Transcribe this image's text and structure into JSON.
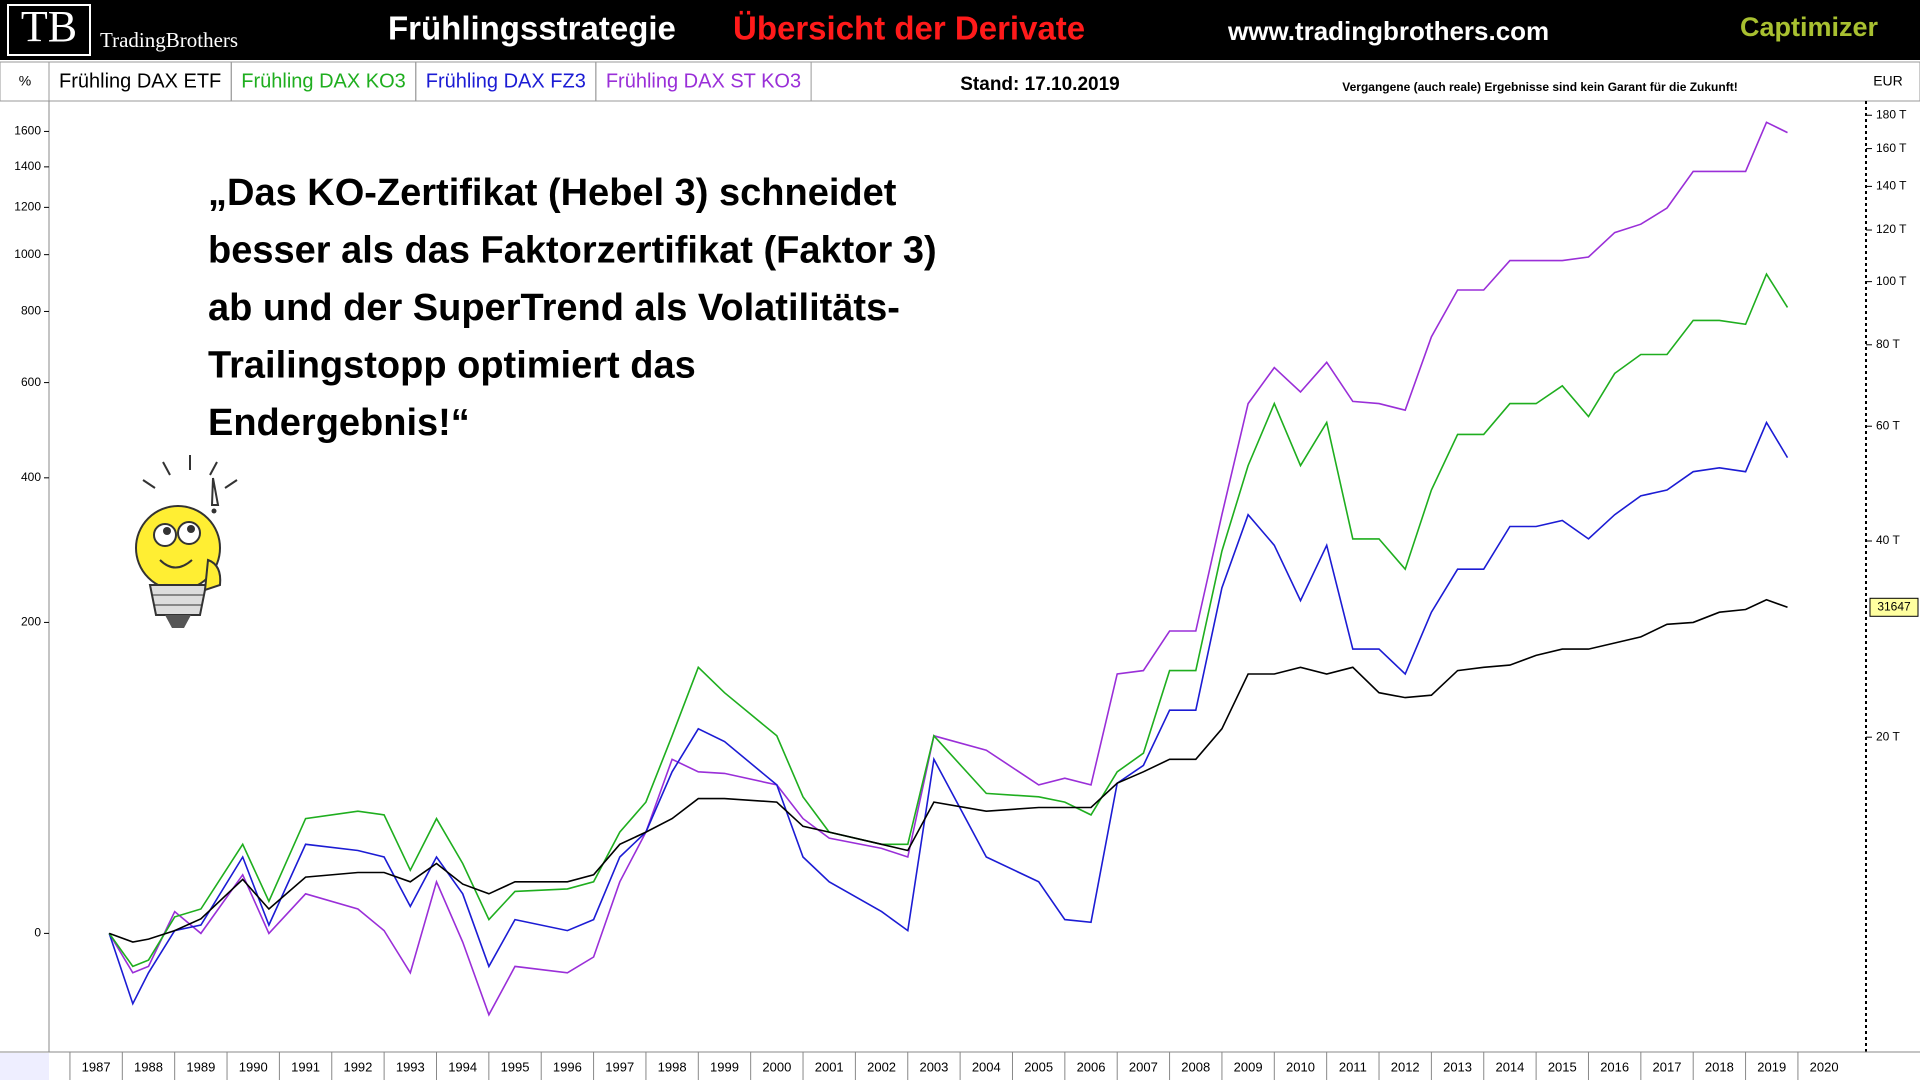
{
  "header": {
    "logo": "TB",
    "brand": "TradingBrothers",
    "title": "Frühlingsstrategie",
    "subtitle": "Übersicht der Derivate",
    "website": "www.tradingbrothers.com",
    "product": "Captimizer"
  },
  "chart_data": {
    "type": "line",
    "ylabel": "%",
    "y2label": "EUR",
    "stand": "Stand: 17.10.2019",
    "disclaimer": "Vergangene (auch reale) Ergebnisse sind kein Garant für die Zukunft!",
    "annotation": [
      "„Das KO-Zertifikat (Hebel 3) schneidet",
      "besser als das Faktorzertifikat (Faktor 3)",
      "ab und der SuperTrend als Volatilitäts-",
      "Trailingstopp optimiert das",
      "Endergebnis!“"
    ],
    "log_scale": true,
    "xlim": [
      1986.6,
      2021.3
    ],
    "xticks": [
      1987,
      1988,
      1989,
      1990,
      1991,
      1992,
      1993,
      1994,
      1995,
      1996,
      1997,
      1998,
      1999,
      2000,
      2001,
      2002,
      2003,
      2004,
      2005,
      2006,
      2007,
      2008,
      2009,
      2010,
      2011,
      2012,
      2013,
      2014,
      2015,
      2016,
      2017,
      2018,
      2019,
      2020
    ],
    "ylim": [
      -34,
      1773
    ],
    "yticks": [
      0,
      200,
      400,
      600,
      800,
      1000,
      1200,
      1400,
      1600
    ],
    "y2lim": [
      6600,
      187300
    ],
    "y2ticks": [
      {
        "value": 20000,
        "label": "20 T"
      },
      {
        "value": 40000,
        "label": "40 T"
      },
      {
        "value": 60000,
        "label": "60 T"
      },
      {
        "value": 80000,
        "label": "80 T"
      },
      {
        "value": 100000,
        "label": "100 T"
      },
      {
        "value": 120000,
        "label": "120 T"
      },
      {
        "value": 140000,
        "label": "140 T"
      },
      {
        "value": 160000,
        "label": "160 T"
      },
      {
        "value": 180000,
        "label": "180 T"
      }
    ],
    "y2_marker": 31647,
    "x": [
      1987.75,
      1988.2,
      1988.5,
      1989.0,
      1989.5,
      1990.3,
      1990.8,
      1991.5,
      1992.5,
      1993.0,
      1993.5,
      1994.0,
      1994.5,
      1995.0,
      1995.5,
      1996.5,
      1997.0,
      1997.5,
      1998.0,
      1998.5,
      1999.0,
      1999.5,
      2000.5,
      2001.0,
      2001.5,
      2002.5,
      2003.0,
      2003.5,
      2004.5,
      2005.5,
      2006.0,
      2006.5,
      2007.0,
      2007.5,
      2008.0,
      2008.5,
      2009.0,
      2009.5,
      2010.0,
      2010.5,
      2011.0,
      2011.5,
      2012.0,
      2012.5,
      2013.0,
      2013.5,
      2014.0,
      2014.5,
      2015.0,
      2015.5,
      2016.0,
      2016.5,
      2017.0,
      2017.5,
      2018.0,
      2018.5,
      2019.0,
      2019.4,
      2019.8
    ],
    "series": [
      {
        "name": "Frühling DAX ETF",
        "color": "#000000",
        "values": [
          0,
          -3,
          -2,
          1,
          5.3,
          21,
          9,
          22,
          24,
          24,
          20,
          28,
          19,
          15,
          20,
          20,
          23,
          37,
          43,
          50,
          61,
          61,
          59,
          46,
          43,
          37,
          34,
          59,
          54,
          56,
          56,
          56,
          70,
          77,
          85,
          85,
          106,
          150,
          150,
          156,
          150,
          156,
          134,
          130,
          132,
          153,
          156,
          158,
          167,
          173,
          173,
          179,
          185,
          198,
          200,
          211,
          214,
          225,
          216.47
        ]
      },
      {
        "name": "Frühling DAX KO3",
        "color": "#1fae1f",
        "values": [
          0,
          -11,
          -9,
          6,
          9,
          37,
          12,
          50,
          54,
          52,
          25,
          50,
          28,
          5,
          16,
          17,
          20,
          43,
          59,
          101,
          156,
          134,
          101,
          62,
          43,
          37,
          37,
          101,
          64,
          62,
          59,
          52,
          77,
          89,
          153,
          153,
          286,
          422,
          550,
          422,
          508,
          303,
          303,
          262,
          379,
          483,
          483,
          550,
          550,
          592,
          521,
          623,
          673,
          673,
          772,
          772,
          760,
          927,
          813
        ]
      },
      {
        "name": "Frühling DAX FZ3",
        "color": "#1c1cd4",
        "values": [
          0,
          -22,
          -13,
          1,
          3,
          31,
          3,
          37,
          34,
          31,
          10,
          31,
          15,
          -11,
          5,
          1,
          5,
          31,
          43,
          77,
          106,
          97,
          69,
          31,
          20,
          8,
          1,
          85,
          31,
          20,
          5,
          4,
          70,
          81,
          120,
          120,
          239,
          339,
          294,
          224,
          294,
          173,
          173,
          150,
          211,
          262,
          262,
          321,
          321,
          330,
          303,
          339,
          369,
          379,
          411,
          418,
          411,
          508,
          437
        ]
      },
      {
        "name": "Frühling DAX ST KO3",
        "color": "#9a2fd8",
        "values": [
          0,
          -13,
          -11,
          8,
          0,
          23,
          0,
          15,
          9,
          1,
          -13,
          20,
          -3,
          -25,
          -11,
          -13,
          -8,
          20,
          43,
          85,
          77,
          76,
          69,
          50,
          40,
          35,
          31,
          101,
          91,
          69,
          73,
          69,
          150,
          153,
          191,
          191,
          339,
          550,
          638,
          577,
          652,
          555,
          550,
          535,
          723,
          871,
          871,
          977,
          977,
          977,
          991,
          1089,
          1125,
          1197,
          1376,
          1376,
          1376,
          1656,
          1593
        ]
      }
    ]
  }
}
